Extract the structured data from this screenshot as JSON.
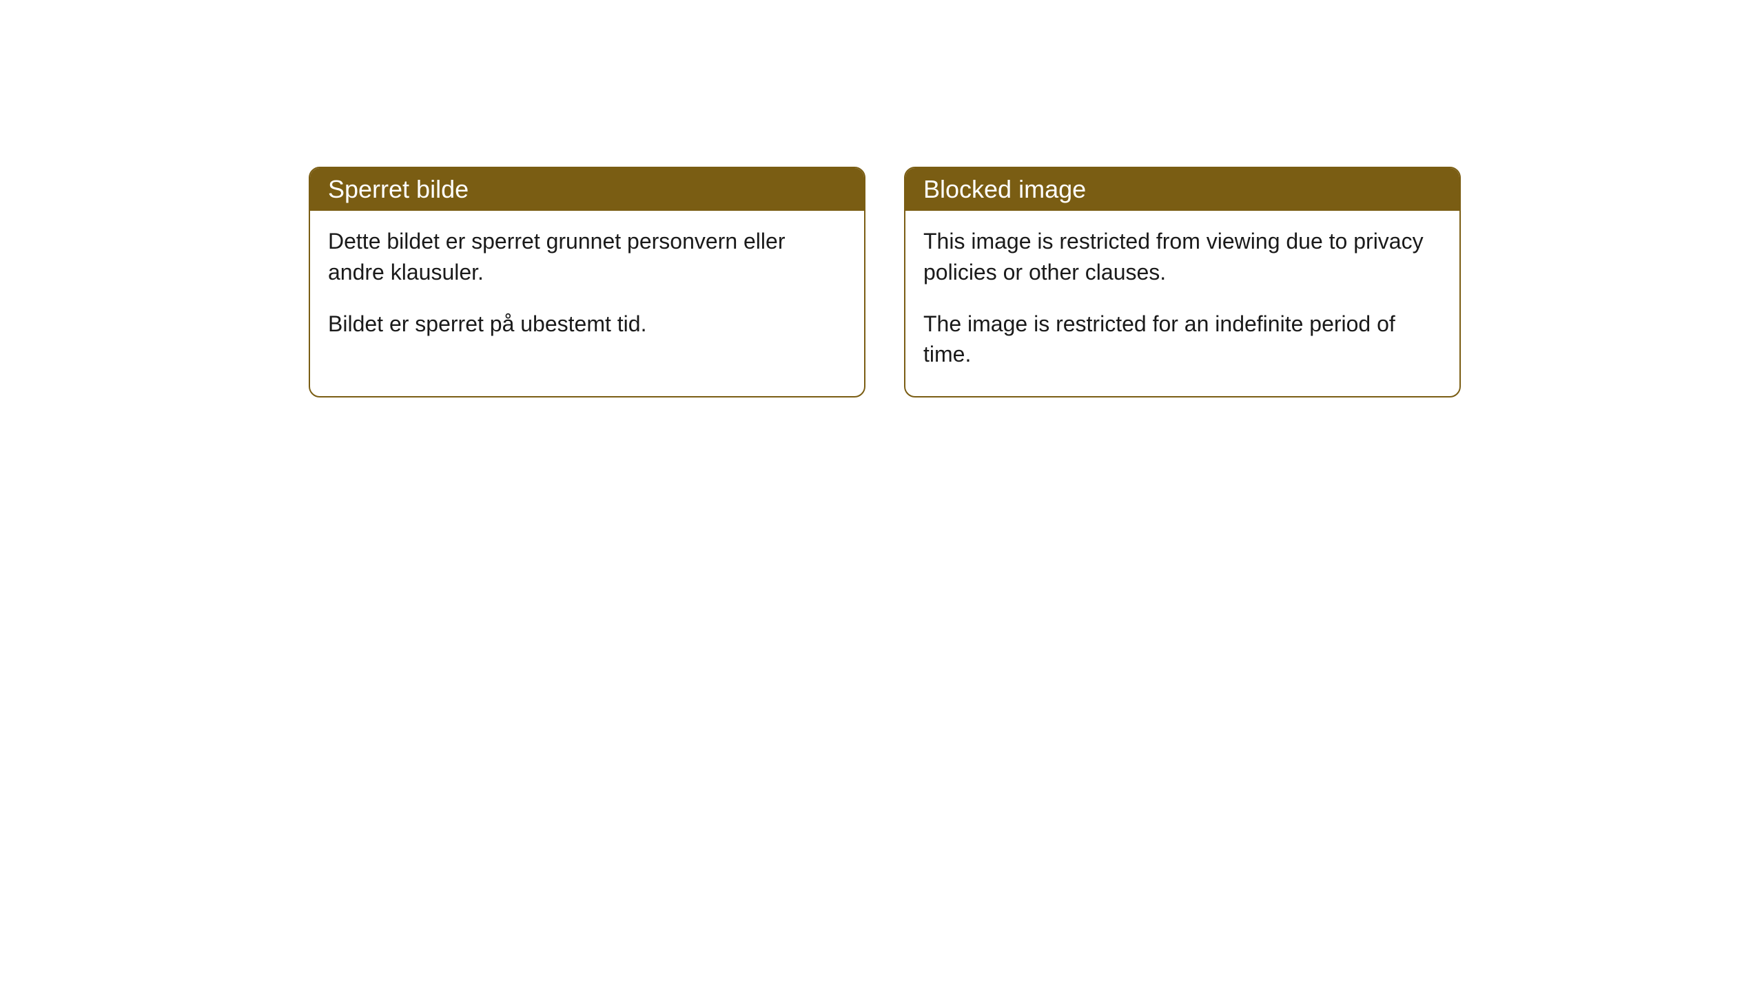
{
  "cards": [
    {
      "title": "Sperret bilde",
      "paragraph1": "Dette bildet er sperret grunnet personvern eller andre klausuler.",
      "paragraph2": "Bildet er sperret på ubestemt tid."
    },
    {
      "title": "Blocked image",
      "paragraph1": "This image is restricted from viewing due to privacy policies or other clauses.",
      "paragraph2": "The image is restricted for an indefinite period of time."
    }
  ],
  "style": {
    "header_bg_color": "#7a5d13",
    "header_text_color": "#ffffff",
    "body_bg_color": "#ffffff",
    "body_text_color": "#1a1a1a",
    "border_color": "#7a5d13",
    "border_radius": 16,
    "header_font_size": 36,
    "body_font_size": 32
  }
}
